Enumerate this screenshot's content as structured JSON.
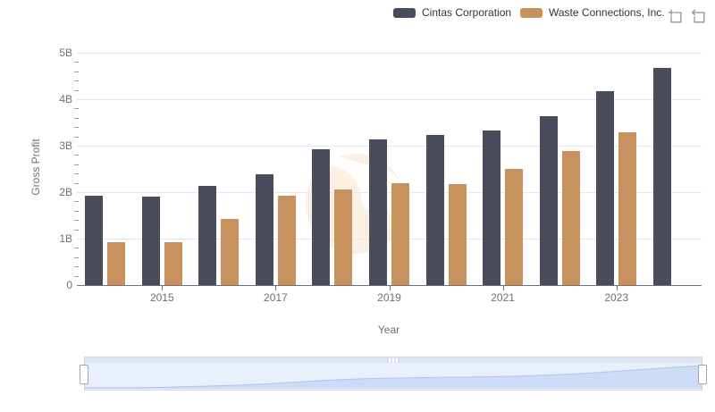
{
  "legend": {
    "items": [
      {
        "label": "Cintas Corporation",
        "color": "#494c5a"
      },
      {
        "label": "Waste Connections, Inc.",
        "color": "#c8925e"
      }
    ]
  },
  "toolbar": {
    "icons": [
      "data-zoom-icon",
      "restore-icon"
    ]
  },
  "chart_data": {
    "type": "bar",
    "title": "",
    "xlabel": "Year",
    "ylabel": "Gross Profit",
    "categories": [
      2014,
      2015,
      2016,
      2017,
      2018,
      2019,
      2020,
      2021,
      2022,
      2023,
      2024
    ],
    "series": [
      {
        "name": "Cintas Corporation",
        "color": "#494c5a",
        "values": [
          1.92,
          1.91,
          2.14,
          2.38,
          2.92,
          3.14,
          3.23,
          3.33,
          3.63,
          4.17,
          4.67
        ]
      },
      {
        "name": "Waste Connections, Inc.",
        "color": "#c8925e",
        "values": [
          0.93,
          0.93,
          1.42,
          1.92,
          2.06,
          2.19,
          2.17,
          2.5,
          2.88,
          3.28,
          null
        ]
      }
    ],
    "unit": "B",
    "ylim": [
      0,
      5
    ],
    "y_tick_labels": [
      "0",
      "1B",
      "2B",
      "3B",
      "4B",
      "5B"
    ],
    "x_tick_labels": [
      "2015",
      "2017",
      "2019",
      "2021",
      "2023"
    ],
    "grid": "horizontal-gridlines",
    "legend_position": "top-right"
  },
  "slider": {
    "range_start_percent": 0,
    "range_end_percent": 100
  }
}
